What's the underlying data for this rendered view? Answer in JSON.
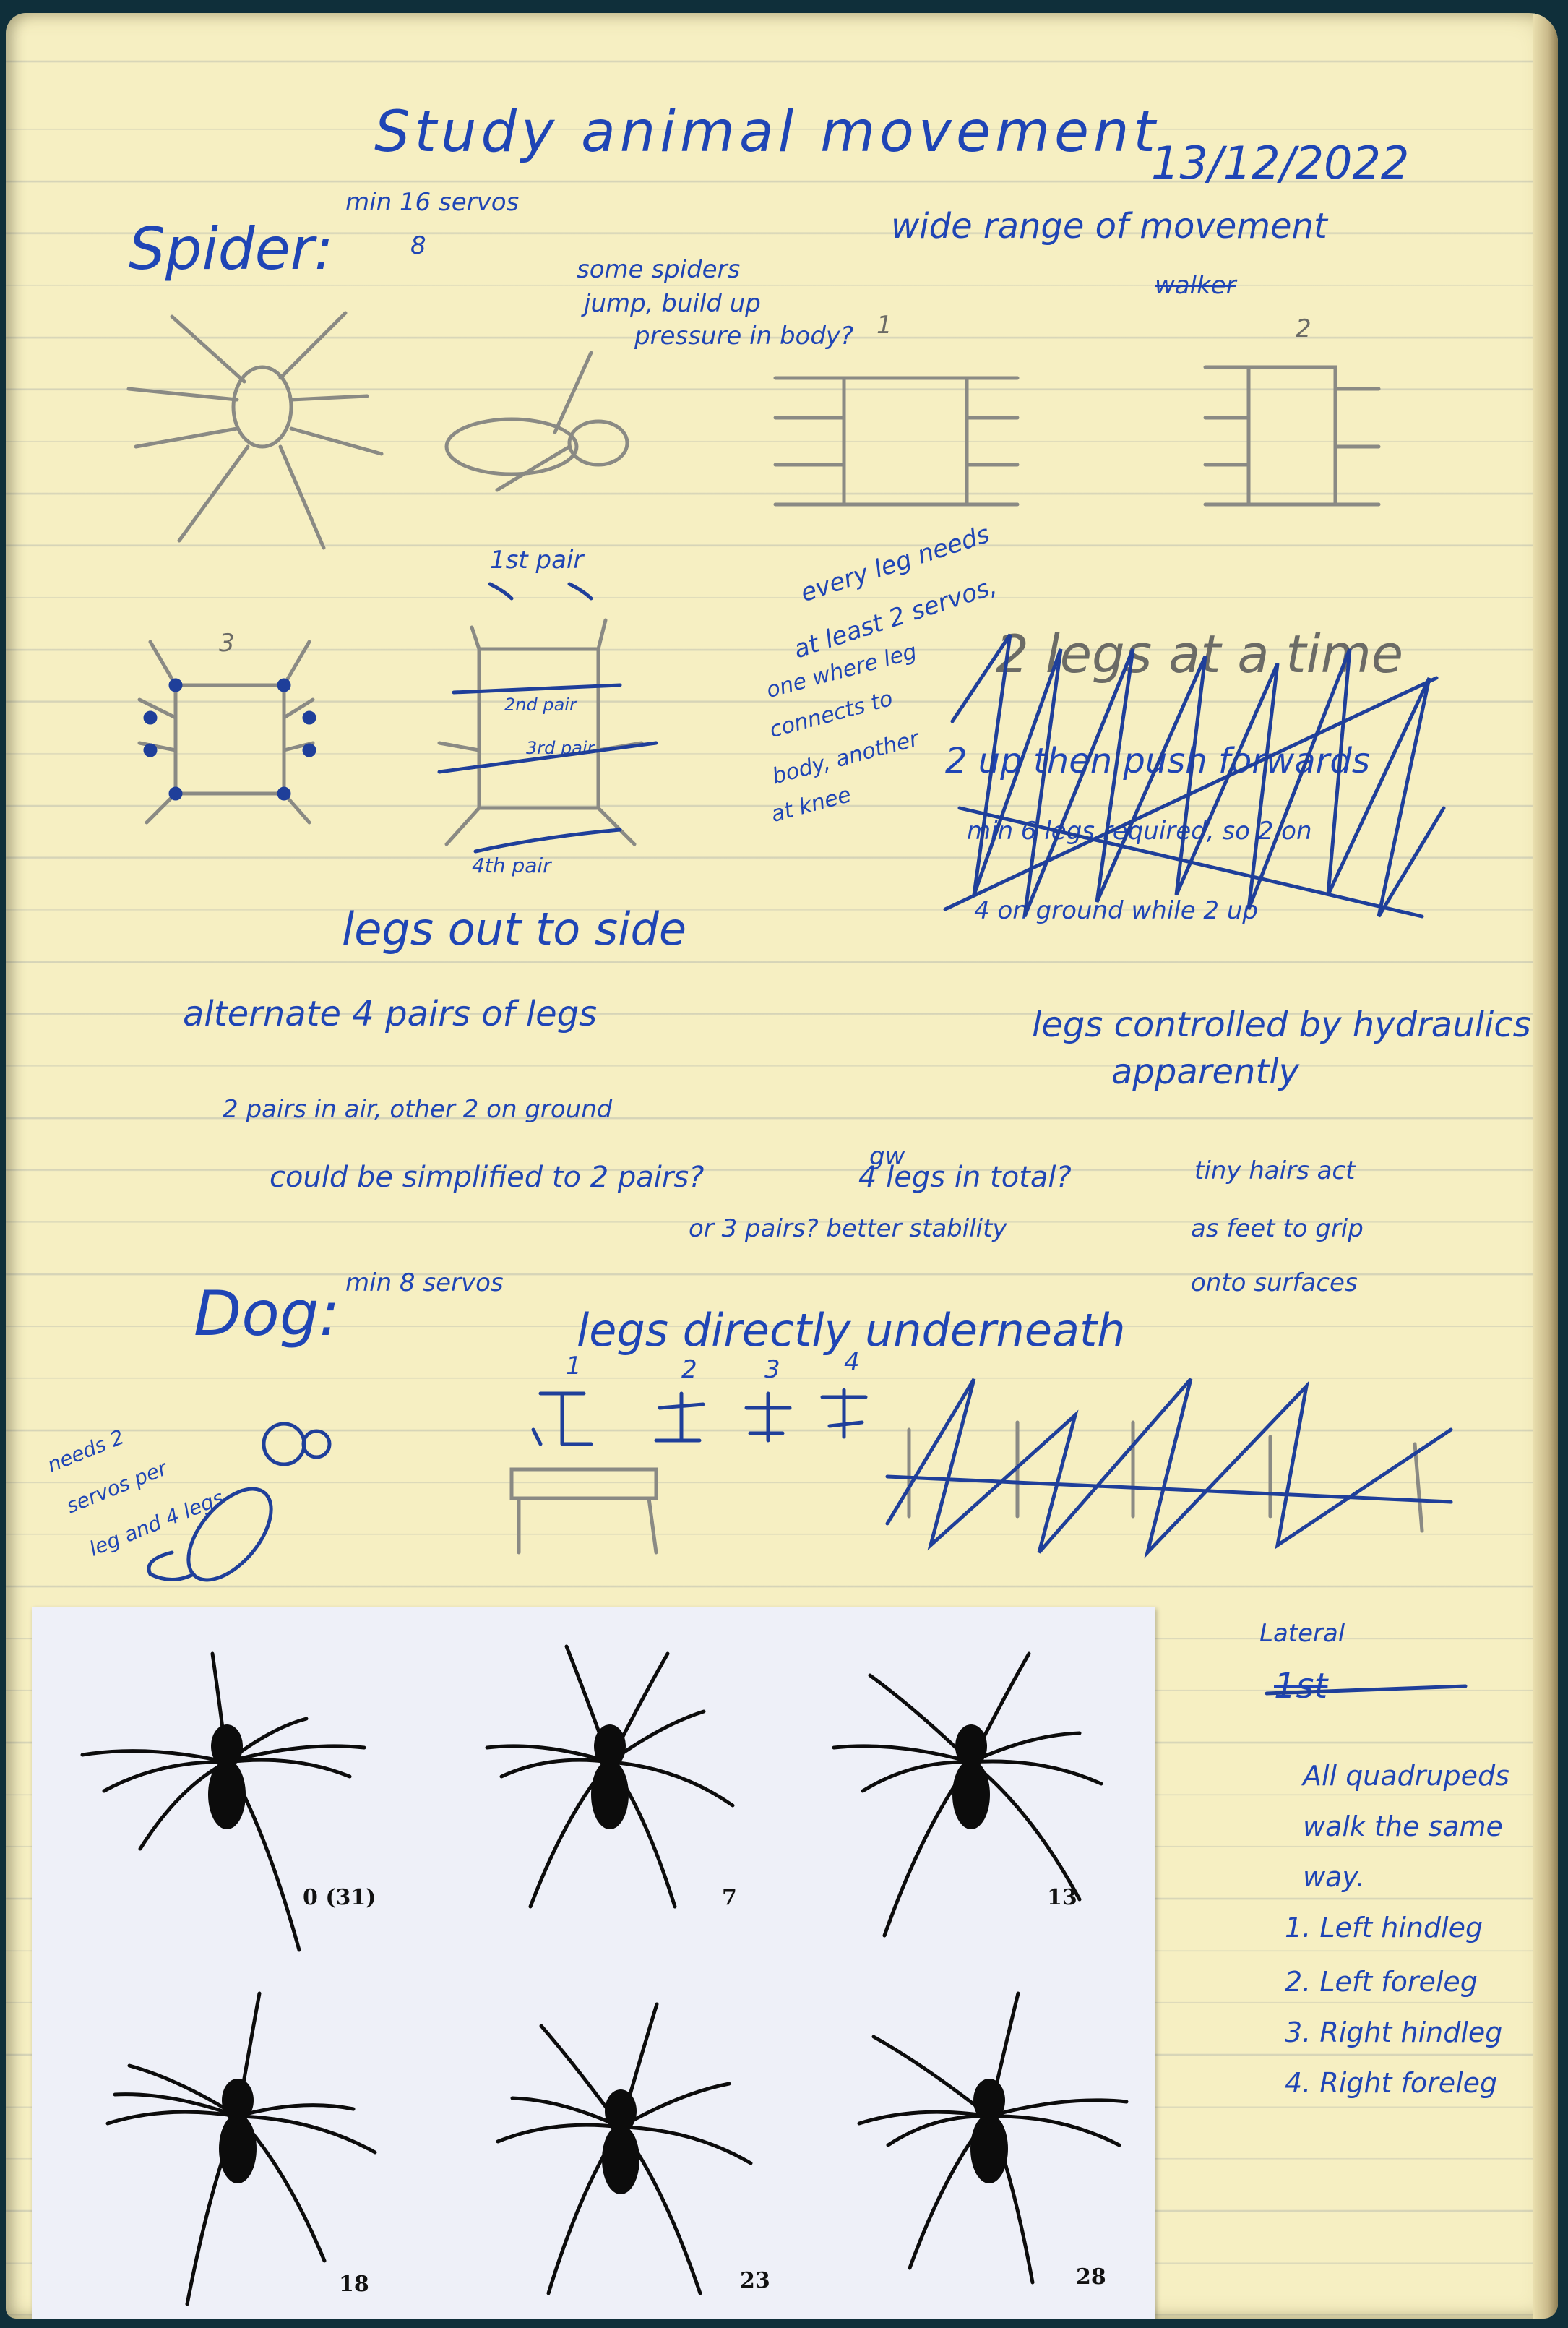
{
  "header": {
    "title": "Study animal movement",
    "date": "13/12/2022"
  },
  "spider": {
    "heading": "Spider:",
    "servo_note": "min 16 servos",
    "servo_note2": "8",
    "range": "wide range of movement",
    "jump_note": [
      "some spiders",
      "jump, build up",
      "pressure in body?"
    ],
    "sketch_num1": "1",
    "sketch_num2": "2",
    "sketch_num3": "3",
    "scribble_word": "walker",
    "pair_top": "1st pair",
    "pair_2": "2nd pair",
    "pair_3": "3rd pair",
    "pair_bottom": "4th pair",
    "servo_note3": [
      "every leg needs",
      "at least 2 servos,"
    ],
    "connect_note": [
      "one where leg",
      "connects to",
      "body, another",
      "at knee"
    ],
    "crossed_notes": [
      "2 legs at a time",
      "2 up then push forwards",
      "min 6 legs required, so 2 on",
      "4 on ground while 2 up"
    ],
    "legs_side": "legs out to side",
    "alternate": "alternate 4 pairs of legs",
    "pairs_air": "2 pairs in air, other 2 on ground",
    "simplify": "could be simplified to 2 pairs?",
    "legs_total": "4 legs in total?",
    "gw": "gw",
    "three_pairs": "or 3 pairs? better stability",
    "hydraulic": [
      "legs controlled by hydraulics",
      "apparently"
    ],
    "hairs": [
      "tiny hairs act",
      "as feet to grip",
      "onto surfaces"
    ]
  },
  "dog": {
    "heading": "Dog:",
    "servo_note": "min 8 servos",
    "legs_under": "legs directly underneath",
    "nums": [
      "1",
      "2",
      "3",
      "4"
    ],
    "side_note": [
      "needs 2",
      "servos per",
      "leg and 4 legs"
    ]
  },
  "gait_notes": {
    "crossed": "Lateral",
    "crossed2": "1st",
    "lines": [
      "All quadrupeds",
      "walk the same",
      "way.",
      "1. Left hindleg",
      "2. Left foreleg",
      "3. Right hindleg",
      "4. Right foreleg"
    ]
  },
  "figure": {
    "frames": [
      "0 (31)",
      "7",
      "13",
      "18",
      "23",
      "28"
    ]
  }
}
